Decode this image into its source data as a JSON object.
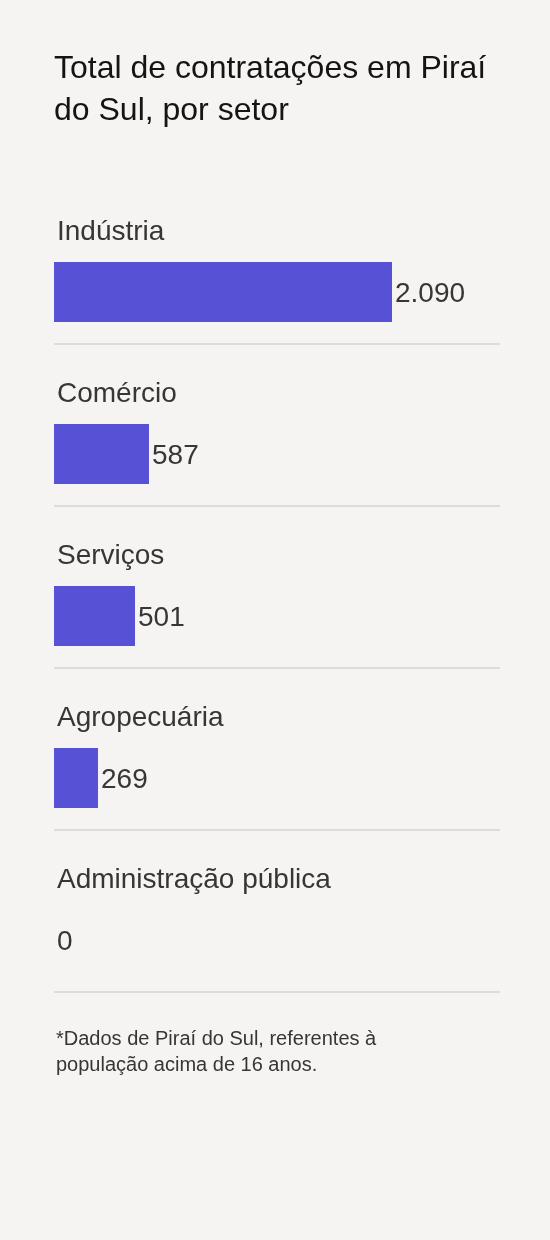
{
  "chart_data": {
    "type": "bar",
    "orientation": "horizontal",
    "title": "Total de contratações em Piraí do Sul, por setor",
    "categories": [
      "Indústria",
      "Comércio",
      "Serviços",
      "Agropecuária",
      "Administração pública"
    ],
    "values": [
      2090,
      587,
      501,
      269,
      0
    ],
    "value_labels": [
      "2.090",
      "587",
      "501",
      "269",
      "0"
    ],
    "color": "#5751d5",
    "grid": "y",
    "annotations": [
      "*Dados de Piraí do Sul, referentes à população acima de 16 anos."
    ]
  }
}
